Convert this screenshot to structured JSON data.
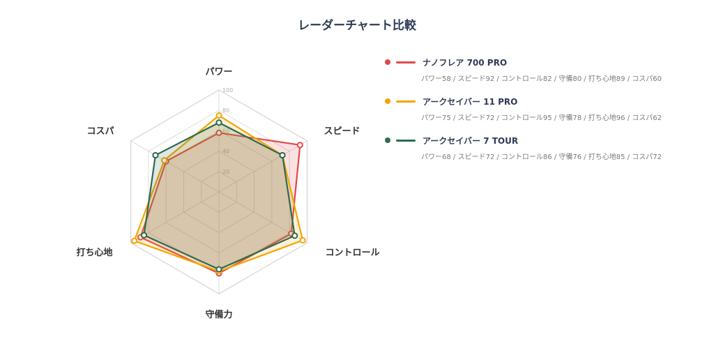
{
  "colors": {
    "grid": "#d4d4d4",
    "series": [
      "#e04a4a",
      "#f2a600",
      "#2e6b4f"
    ],
    "fills": [
      "rgba(224,74,74,0.16)",
      "rgba(242,166,0,0.16)",
      "rgba(46,107,79,0.16)"
    ]
  },
  "chart_data": {
    "type": "radar",
    "title": "レーダーチャート比較",
    "axes": [
      "パワー",
      "スピード",
      "コントロール",
      "守備力",
      "打ち心地",
      "コスパ"
    ],
    "ticks": [
      20,
      40,
      60,
      80,
      100
    ],
    "range": [
      0,
      100
    ],
    "grid": true,
    "legend_position": "right",
    "series": [
      {
        "name": "ナノフレア 700 PRO",
        "values": [
          58,
          92,
          82,
          80,
          89,
          60
        ],
        "detail": "パワー58 / スピード92 / コントロール82 / 守備80 / 打ち心地89 / コスパ60"
      },
      {
        "name": "アークセイバー 11 PRO",
        "values": [
          75,
          72,
          95,
          78,
          96,
          62
        ],
        "detail": "パワー75 / スピード72 / コントロール95 / 守備78 / 打ち心地96 / コスパ62"
      },
      {
        "name": "アークセイバー 7 TOUR",
        "values": [
          68,
          72,
          86,
          76,
          85,
          72
        ],
        "detail": "パワー68 / スピード72 / コントロール86 / 守備76 / 打ち心地85 / コスパ72"
      }
    ]
  }
}
